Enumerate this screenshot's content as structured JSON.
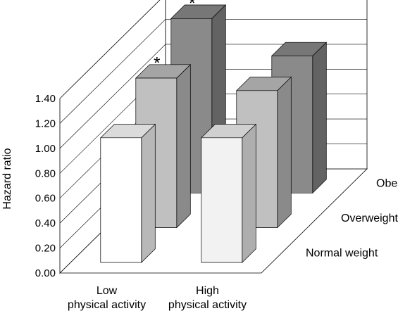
{
  "chart_data": {
    "type": "bar",
    "style": "3d-clustered",
    "categories": [
      {
        "line1": "Low",
        "line2": "physical activity"
      },
      {
        "line1": "High",
        "line2": "physical activity"
      }
    ],
    "series": [
      {
        "name": "Normal weight",
        "values": [
          1.0,
          1.0
        ],
        "colors": [
          "#ffffff",
          "#f2f2f2"
        ],
        "significant": [
          false,
          false
        ]
      },
      {
        "name": "Overweight",
        "values": [
          1.2,
          1.1
        ],
        "colors": [
          "#c0c0c0",
          "#c0c0c0"
        ],
        "significant": [
          true,
          false
        ]
      },
      {
        "name": "Obese",
        "values": [
          1.4,
          1.1
        ],
        "colors": [
          "#8a8a8a",
          "#8a8a8a"
        ],
        "significant": [
          true,
          false
        ]
      }
    ],
    "ylabel": "Hazard ratio",
    "ylim": [
      0,
      1.4
    ],
    "yticks": [
      "0.00",
      "0.20",
      "0.40",
      "0.60",
      "0.80",
      "1.00",
      "1.20",
      "1.40"
    ],
    "significance_marker": "*",
    "grid": true,
    "legend": "depth-axis-right"
  }
}
